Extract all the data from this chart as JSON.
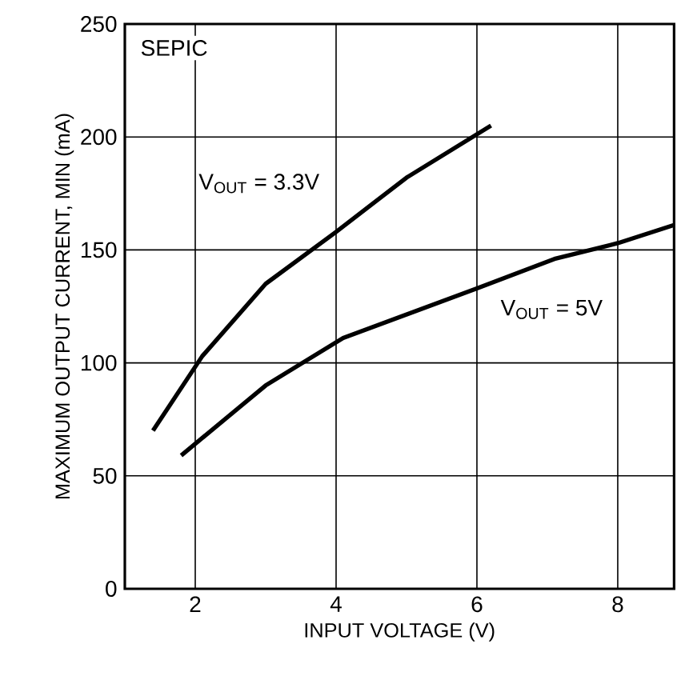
{
  "chart_data": {
    "type": "line",
    "xlabel": "INPUT VOLTAGE (V)",
    "ylabel": "MAXIMUM OUTPUT CURRENT, MIN (mA)",
    "annotations": [
      "SEPIC"
    ],
    "xlim": [
      1,
      8.8
    ],
    "xticks": [
      2,
      4,
      6,
      8
    ],
    "ylim": [
      0,
      250
    ],
    "yticks": [
      0,
      50,
      100,
      150,
      200,
      250
    ],
    "grid": true,
    "marker": "none",
    "line_style": "solid",
    "series": [
      {
        "name": "V$_{OUT}$ = 3.3V",
        "color": "#000000",
        "x": [
          1.4,
          2.1,
          3,
          4,
          5,
          6.2
        ],
        "values": [
          70,
          103,
          135,
          158,
          182,
          205
        ]
      },
      {
        "name": "V$_{OUT}$ = 5V",
        "color": "#000000",
        "x": [
          1.8,
          3,
          4.1,
          6,
          7.1,
          8,
          8.8
        ],
        "values": [
          59,
          90,
          111,
          133,
          146,
          153,
          161
        ]
      }
    ]
  }
}
